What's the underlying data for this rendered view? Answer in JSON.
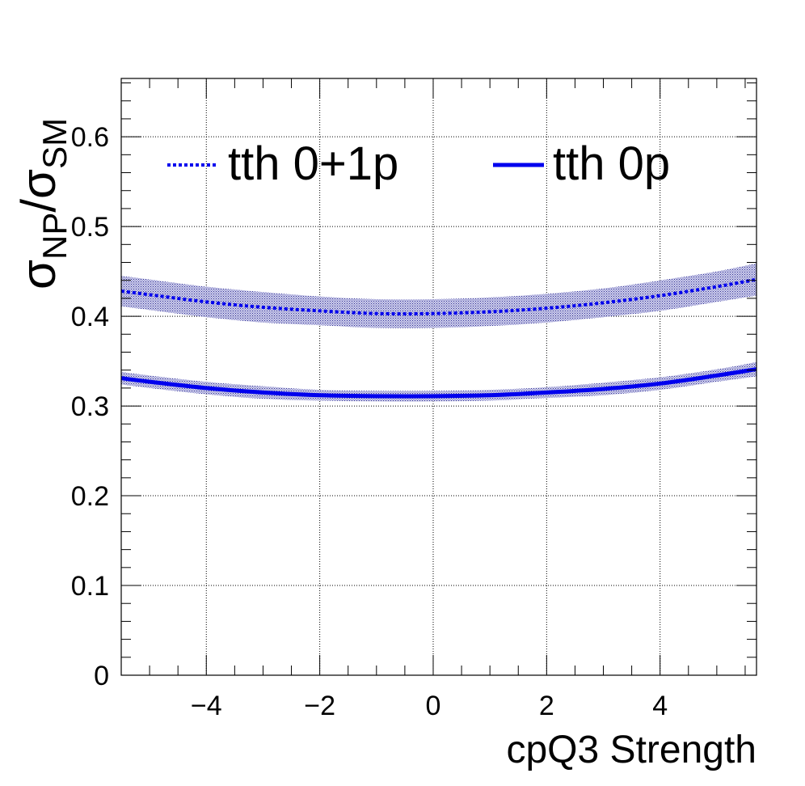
{
  "chart_data": {
    "type": "line",
    "xlabel": "cpQ3 Strength",
    "ylabel": {
      "symbol": "σ",
      "numerator_sub": "NP",
      "slash": "/",
      "denominator_sub": "SM"
    },
    "xlim": [
      -5.5,
      5.7
    ],
    "ylim": [
      0,
      0.665
    ],
    "x_ticks": [
      -4,
      -2,
      0,
      2,
      4
    ],
    "x_tick_labels": [
      "−4",
      "−2",
      "0",
      "2",
      "4"
    ],
    "y_ticks": [
      0,
      0.1,
      0.2,
      0.3,
      0.4,
      0.5,
      0.6
    ],
    "y_tick_labels": [
      "0",
      "0.1",
      "0.2",
      "0.3",
      "0.4",
      "0.5",
      "0.6"
    ],
    "grid": true,
    "legend_placement": "top",
    "series": [
      {
        "name": "tth 0+1p",
        "style": "dotted",
        "color": "#0000ee",
        "x": [
          -5.5,
          -5,
          -4,
          -3,
          -2,
          -1,
          0,
          1,
          2,
          3,
          4,
          5,
          5.7
        ],
        "y": [
          0.428,
          0.424,
          0.416,
          0.41,
          0.406,
          0.403,
          0.403,
          0.405,
          0.409,
          0.415,
          0.423,
          0.433,
          0.441
        ],
        "band_half_width": [
          0.017,
          0.017,
          0.017,
          0.017,
          0.016,
          0.016,
          0.016,
          0.016,
          0.016,
          0.016,
          0.017,
          0.017,
          0.018
        ]
      },
      {
        "name": "tth 0p",
        "style": "solid",
        "color": "#0000ee",
        "x": [
          -5.5,
          -5,
          -4,
          -3,
          -2,
          -1,
          0,
          1,
          2,
          3,
          4,
          5,
          5.7
        ],
        "y": [
          0.331,
          0.327,
          0.32,
          0.315,
          0.312,
          0.311,
          0.311,
          0.312,
          0.315,
          0.319,
          0.325,
          0.334,
          0.341
        ],
        "band_half_width": [
          0.007,
          0.007,
          0.007,
          0.007,
          0.006,
          0.006,
          0.006,
          0.006,
          0.006,
          0.007,
          0.007,
          0.007,
          0.008
        ]
      }
    ]
  }
}
